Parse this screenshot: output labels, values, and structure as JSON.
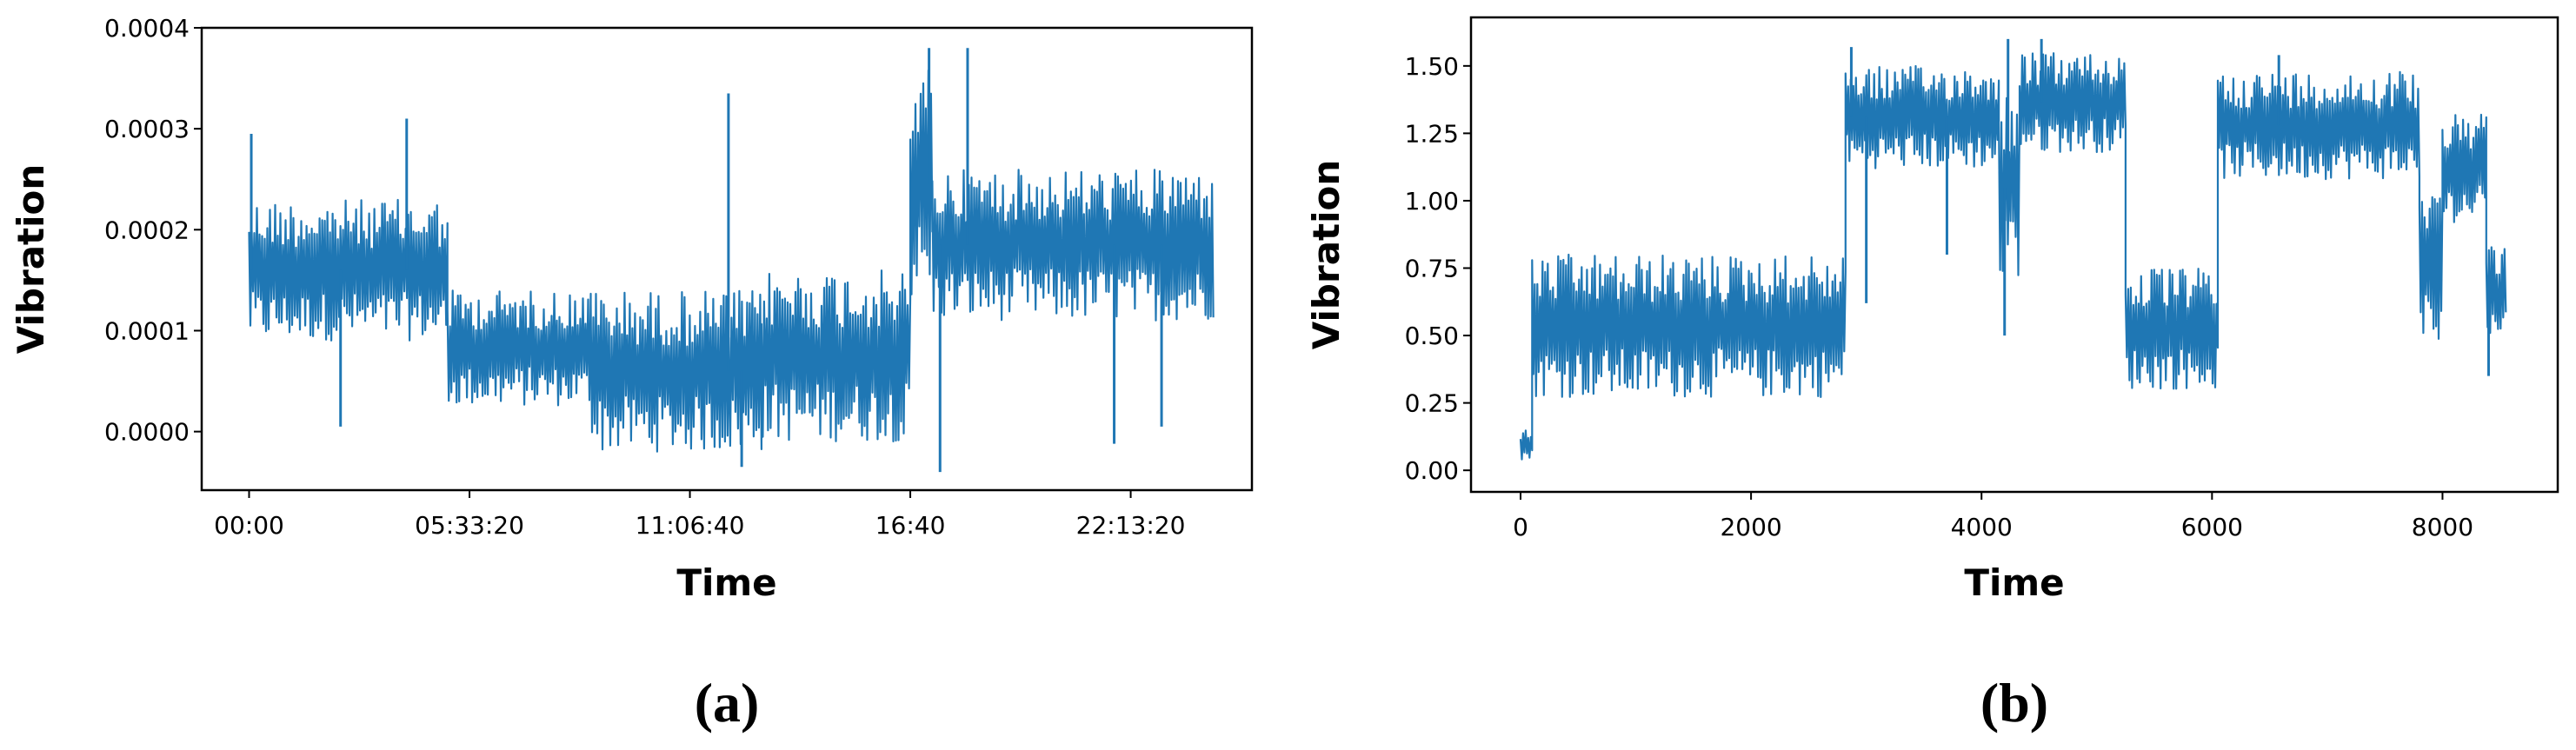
{
  "chart_data": [
    {
      "type": "line",
      "panel_label": "(a)",
      "xlabel": "Time",
      "ylabel": "Vibration",
      "color": "#1f77b4",
      "x_ticks": [
        {
          "value": 0,
          "label": "00:00"
        },
        {
          "value": 20000,
          "label": "05:33:20"
        },
        {
          "value": 40000,
          "label": "11:06:40"
        },
        {
          "value": 60000,
          "label": "16:40"
        },
        {
          "value": 80000,
          "label": "22:13:20"
        }
      ],
      "y_ticks": [
        {
          "value": 0.0,
          "label": "0.0000"
        },
        {
          "value": 0.0001,
          "label": "0.0001"
        },
        {
          "value": 0.0002,
          "label": "0.0002"
        },
        {
          "value": 0.0003,
          "label": "0.0003"
        },
        {
          "value": 0.0004,
          "label": "0.0004"
        }
      ],
      "xlim": [
        -4300,
        91000
      ],
      "ylim": [
        -5.8e-05,
        0.0004
      ],
      "grid": false,
      "segments": [
        {
          "x": [
            0,
            18000
          ],
          "low": 9e-05,
          "high": 0.00023
        },
        {
          "x": [
            18000,
            31000
          ],
          "low": 2.5e-05,
          "high": 0.00014
        },
        {
          "x": [
            31000,
            46500
          ],
          "low": -2e-05,
          "high": 0.00014
        },
        {
          "x": [
            46500,
            60000
          ],
          "low": -1e-05,
          "high": 0.00016
        },
        {
          "x": [
            60000,
            62000
          ],
          "low": 0.00013,
          "high": 0.00036
        },
        {
          "x": [
            62000,
            87500
          ],
          "low": 0.00011,
          "high": 0.00026
        }
      ],
      "spikes": [
        {
          "x": 200,
          "y": 0.000295
        },
        {
          "x": 8300,
          "y": 5e-06
        },
        {
          "x": 14300,
          "y": 0.00031
        },
        {
          "x": 43500,
          "y": 0.000335
        },
        {
          "x": 44700,
          "y": -3.5e-05
        },
        {
          "x": 61700,
          "y": 0.00038
        },
        {
          "x": 62700,
          "y": -4e-05
        },
        {
          "x": 65200,
          "y": 0.00038
        },
        {
          "x": 78500,
          "y": -1.2e-05
        },
        {
          "x": 82800,
          "y": 5e-06
        }
      ]
    },
    {
      "type": "line",
      "panel_label": "(b)",
      "xlabel": "Time",
      "ylabel": "Vibration",
      "color": "#1f77b4",
      "x_ticks": [
        {
          "value": 0,
          "label": "0"
        },
        {
          "value": 2000,
          "label": "2000"
        },
        {
          "value": 4000,
          "label": "4000"
        },
        {
          "value": 6000,
          "label": "6000"
        },
        {
          "value": 8000,
          "label": "8000"
        }
      ],
      "y_ticks": [
        {
          "value": 0.0,
          "label": "0.00"
        },
        {
          "value": 0.25,
          "label": "0.25"
        },
        {
          "value": 0.5,
          "label": "0.50"
        },
        {
          "value": 0.75,
          "label": "0.75"
        },
        {
          "value": 1.0,
          "label": "1.00"
        },
        {
          "value": 1.25,
          "label": "1.25"
        },
        {
          "value": 1.5,
          "label": "1.50"
        }
      ],
      "xlim": [
        -430,
        9000
      ],
      "ylim": [
        -0.08,
        1.68
      ],
      "grid": false,
      "segments": [
        {
          "x": [
            0,
            100
          ],
          "low": 0.04,
          "high": 0.15
        },
        {
          "x": [
            100,
            2820
          ],
          "low": 0.27,
          "high": 0.8
        },
        {
          "x": [
            2820,
            4150
          ],
          "low": 1.12,
          "high": 1.5
        },
        {
          "x": [
            4150,
            4330
          ],
          "low": 0.7,
          "high": 1.4
        },
        {
          "x": [
            4330,
            5250
          ],
          "low": 1.18,
          "high": 1.55
        },
        {
          "x": [
            5250,
            6050
          ],
          "low": 0.3,
          "high": 0.75
        },
        {
          "x": [
            6050,
            7800
          ],
          "low": 1.08,
          "high": 1.48
        },
        {
          "x": [
            7800,
            8000
          ],
          "low": 0.42,
          "high": 1.15
        },
        {
          "x": [
            8000,
            8380
          ],
          "low": 0.92,
          "high": 1.32
        },
        {
          "x": [
            8380,
            8550
          ],
          "low": 0.48,
          "high": 0.85
        }
      ],
      "spikes": [
        {
          "x": 2870,
          "y": 1.57
        },
        {
          "x": 3000,
          "y": 0.62
        },
        {
          "x": 3700,
          "y": 0.8
        },
        {
          "x": 4200,
          "y": 0.5
        },
        {
          "x": 4230,
          "y": 1.6
        },
        {
          "x": 4520,
          "y": 1.6
        },
        {
          "x": 6580,
          "y": 1.54
        },
        {
          "x": 8400,
          "y": 0.35
        }
      ]
    }
  ]
}
